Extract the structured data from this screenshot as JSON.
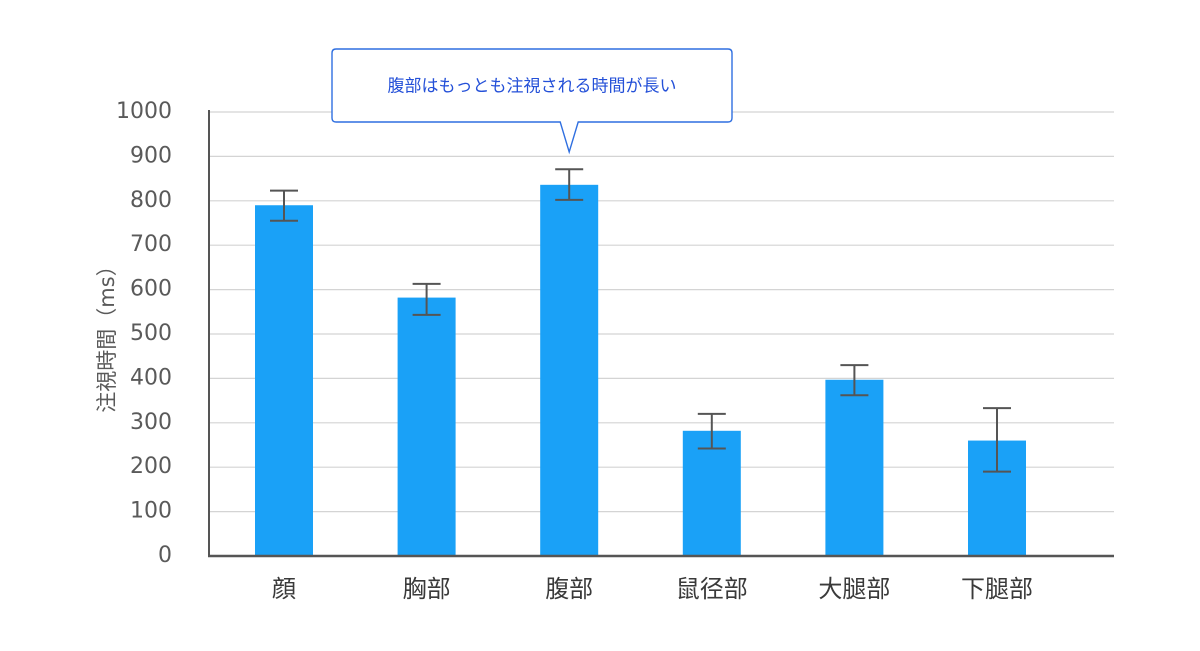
{
  "chart_data": {
    "type": "bar",
    "categories": [
      "顔",
      "胸部",
      "腹部",
      "鼠径部",
      "大腿部",
      "下腿部"
    ],
    "values": [
      790,
      582,
      836,
      282,
      397,
      260
    ],
    "error_high": [
      823,
      613,
      871,
      320,
      430,
      333
    ],
    "error_low": [
      755,
      543,
      802,
      242,
      362,
      190
    ],
    "ylabel": "注視時間（ms）",
    "xlabel": "",
    "ylim": [
      0,
      1000
    ],
    "yticks": [
      0,
      100,
      200,
      300,
      400,
      500,
      600,
      700,
      800,
      900,
      1000
    ],
    "grid": true,
    "annotation": {
      "text": "腹部はもっとも注視される時間が長い",
      "target_category": "腹部"
    },
    "colors": {
      "bar": "#1aa1f7",
      "error_bar": "#555555",
      "grid": "#d4d4d4",
      "axis": "#555555",
      "callout_border": "#2f6fe0",
      "callout_text": "#2450d8"
    }
  }
}
